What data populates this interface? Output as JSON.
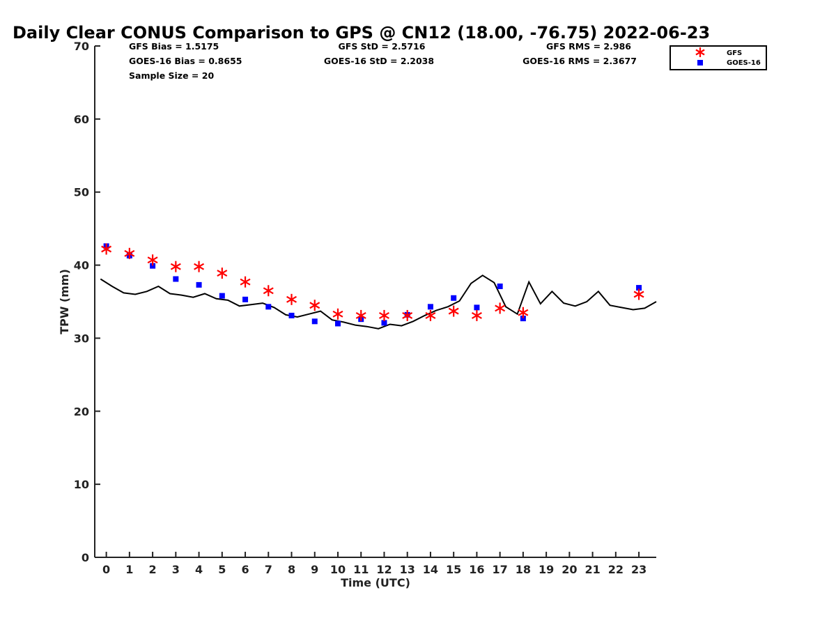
{
  "chart_data": {
    "type": "line",
    "title": "Daily Clear CONUS Comparison to GPS @ CN12 (18.00, -76.75) 2022-06-23",
    "xlabel": "Time (UTC)",
    "ylabel": "TPW (mm)",
    "xlim": [
      -0.5,
      23.75
    ],
    "ylim": [
      0,
      70
    ],
    "x_ticks": [
      0,
      1,
      2,
      3,
      4,
      5,
      6,
      7,
      8,
      9,
      10,
      11,
      12,
      13,
      14,
      15,
      16,
      17,
      18,
      19,
      20,
      21,
      22,
      23
    ],
    "y_ticks": [
      0,
      10,
      20,
      30,
      40,
      50,
      60,
      70
    ],
    "grid": false,
    "legend_position": "top-right",
    "stats": {
      "gfs_bias": "GFS Bias = 1.5175",
      "gfs_std": "GFS StD = 2.5716",
      "gfs_rms": "GFS RMS = 2.986",
      "goes_bias": "GOES-16 Bias = 0.8655",
      "goes_std": "GOES-16 StD = 2.2038",
      "goes_rms": "GOES-16 RMS = 2.3677",
      "sample_size": "Sample Size = 20"
    },
    "series": [
      {
        "name": "GFS",
        "marker": "asterisk",
        "color": "#ff0000",
        "x": [
          0,
          1,
          2,
          3,
          4,
          5,
          6,
          7,
          8,
          9,
          10,
          11,
          12,
          13,
          14,
          15,
          16,
          17,
          18,
          23
        ],
        "y": [
          42.2,
          41.6,
          40.7,
          39.8,
          39.8,
          38.9,
          37.7,
          36.5,
          35.3,
          34.5,
          33.3,
          33.1,
          33.1,
          33.1,
          33.1,
          33.7,
          33.1,
          34.1,
          33.5,
          36.0
        ]
      },
      {
        "name": "GOES-16",
        "marker": "square",
        "color": "#0000ff",
        "x": [
          0,
          1,
          2,
          3,
          4,
          5,
          6,
          7,
          8,
          9,
          10,
          11,
          12,
          13,
          14,
          15,
          16,
          17,
          18,
          23
        ],
        "y": [
          42.6,
          41.3,
          39.9,
          38.1,
          37.3,
          35.8,
          35.3,
          34.3,
          33.1,
          32.3,
          32.0,
          32.6,
          32.1,
          33.2,
          34.3,
          35.5,
          34.2,
          37.1,
          32.7,
          36.9
        ]
      },
      {
        "name": "GPS",
        "marker": "line",
        "color": "#000000",
        "x": [
          -0.25,
          0.25,
          0.75,
          1.25,
          1.75,
          2.25,
          2.75,
          3.25,
          3.75,
          4.25,
          4.75,
          5.25,
          5.75,
          6.25,
          6.75,
          7.25,
          7.75,
          8.25,
          8.75,
          9.25,
          9.75,
          10.25,
          10.75,
          11.25,
          11.75,
          12.25,
          12.75,
          13.25,
          13.75,
          14.25,
          14.75,
          15.25,
          15.75,
          16.25,
          16.75,
          17.25,
          17.75,
          18.25,
          18.75,
          19.25,
          19.75,
          20.25,
          20.75,
          21.25,
          21.75,
          22.25,
          22.75,
          23.25,
          23.75
        ],
        "y": [
          38.1,
          37.1,
          36.2,
          36.0,
          36.4,
          37.1,
          36.1,
          35.9,
          35.6,
          36.1,
          35.4,
          35.2,
          34.4,
          34.6,
          34.8,
          34.2,
          33.2,
          32.9,
          33.3,
          33.7,
          32.5,
          32.2,
          31.8,
          31.6,
          31.3,
          31.9,
          31.7,
          32.3,
          33.1,
          33.8,
          34.3,
          35.1,
          37.5,
          38.6,
          37.6,
          34.3,
          33.3,
          37.7,
          34.7,
          36.4,
          34.8,
          34.4,
          35.0,
          36.4,
          34.5,
          34.2,
          33.9,
          34.1,
          35.0
        ]
      }
    ]
  }
}
